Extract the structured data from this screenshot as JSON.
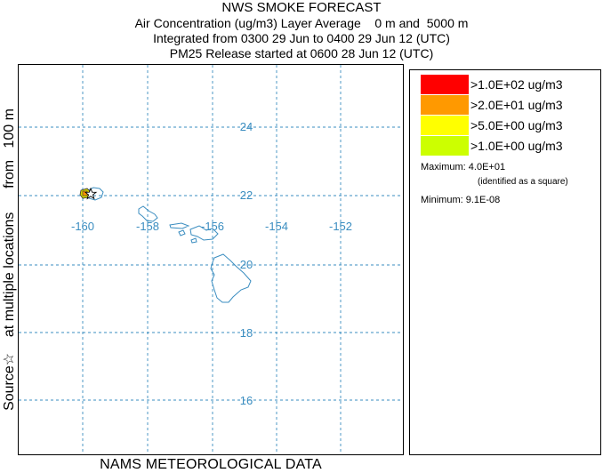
{
  "title": {
    "main": "NWS SMOKE FORECAST",
    "line2": "Air Concentration (ug/m3) Layer Average    0 m and  5000 m",
    "line3": "Integrated from 0300 29 Jun to 0400 29 Jun 12 (UTC)",
    "line4": "PM25 Release started at 0600 28 Jun 12 (UTC)"
  },
  "side_label": "Source☆    at multiple locations      from   100 m",
  "bottom_label": "NAMS METEOROLOGICAL DATA",
  "map": {
    "longitude_labels": [
      "-160",
      "-158",
      "-156",
      "-154",
      "-152"
    ],
    "latitude_labels": [
      "24",
      "22",
      "20",
      "18",
      "16"
    ],
    "colors": {
      "grid": "#3a8dc0",
      "coast": "#3a8dc0",
      "plume": "#d4d400",
      "source": "#000000"
    },
    "source_icon": "star-icon"
  },
  "legend": {
    "entries": [
      {
        "label": ">1.0E+02 ug/m3",
        "color": "#ff0000"
      },
      {
        "label": ">2.0E+01 ug/m3",
        "color": "#ff9900"
      },
      {
        "label": ">5.0E+00 ug/m3",
        "color": "#ffff00"
      },
      {
        "label": ">1.0E+00 ug/m3",
        "color": "#ccff00"
      }
    ],
    "maximum": "Maximum: 4.0E+01",
    "maximum_note": "(identified as a square)",
    "minimum": "Minimum: 9.1E-08"
  }
}
